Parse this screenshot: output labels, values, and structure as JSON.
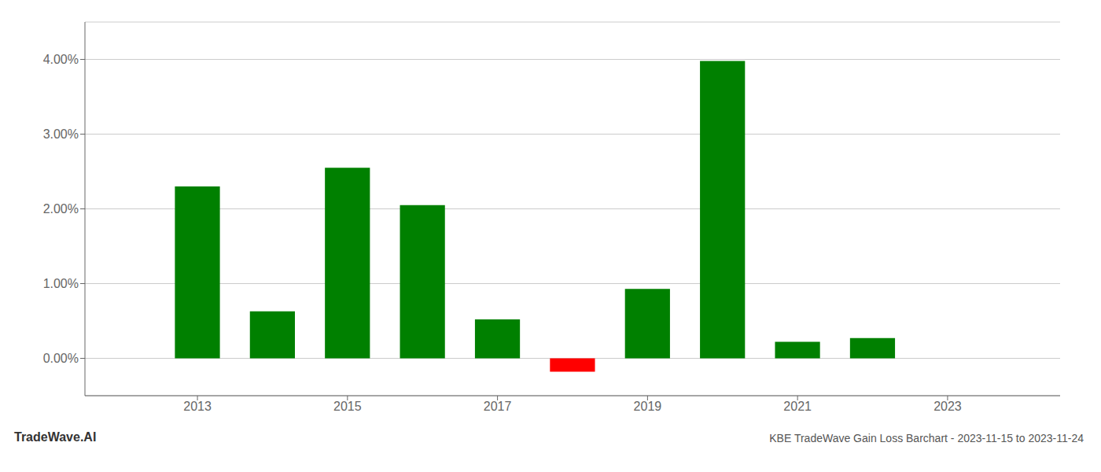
{
  "chart_data": {
    "type": "bar",
    "title": "KBE TradeWave Gain Loss Barchart - 2023-11-15 to 2023-11-24",
    "annotations": [
      "TradeWave.AI"
    ],
    "x": [
      2013,
      2014,
      2015,
      2016,
      2017,
      2018,
      2019,
      2020,
      2021,
      2022
    ],
    "values": [
      0.023,
      0.0063,
      0.0255,
      0.0205,
      0.0052,
      -0.0018,
      0.0093,
      0.0398,
      0.0022,
      0.0027
    ],
    "colors": [
      "#008000",
      "#008000",
      "#008000",
      "#008000",
      "#008000",
      "#ff0000",
      "#008000",
      "#008000",
      "#008000",
      "#008000"
    ],
    "xlim": [
      2011.5,
      2024.5
    ],
    "xticks": [
      2013,
      2015,
      2017,
      2019,
      2021,
      2023
    ],
    "ylim": [
      -0.005,
      0.045
    ],
    "yticks": [
      {
        "value": 0.0,
        "label": "0.00%"
      },
      {
        "value": 0.01,
        "label": "1.00%"
      },
      {
        "value": 0.02,
        "label": "2.00%"
      },
      {
        "value": 0.03,
        "label": "3.00%"
      },
      {
        "value": 0.04,
        "label": "4.00%"
      }
    ],
    "grid": "y"
  }
}
